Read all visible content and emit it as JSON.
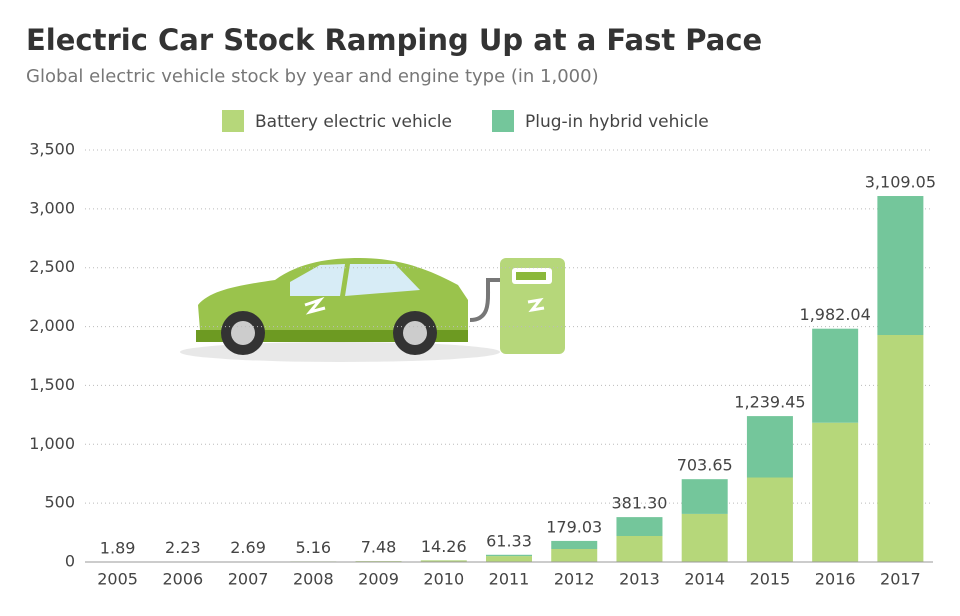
{
  "chart_data": {
    "type": "stacked-bar",
    "title": "Electric Car Stock Ramping Up at a Fast Pace",
    "subtitle": "Global electric vehicle stock by year and engine type (in 1,000)",
    "categories": [
      "2005",
      "2006",
      "2007",
      "2008",
      "2009",
      "2010",
      "2011",
      "2012",
      "2013",
      "2014",
      "2015",
      "2016",
      "2017"
    ],
    "series": [
      {
        "name": "Battery electric vehicle",
        "color": "#b6d77a",
        "values": [
          1.89,
          2.23,
          2.69,
          5.16,
          7.48,
          13.86,
          50.2,
          110.33,
          220.86,
          408.45,
          717.79,
          1183.23,
          1928.36
        ]
      },
      {
        "name": "Plug-in hybrid vehicle",
        "color": "#74c69b",
        "values": [
          0,
          0,
          0,
          0,
          0,
          0.4,
          11.13,
          68.7,
          160.44,
          295.2,
          521.66,
          798.81,
          1180.69
        ]
      }
    ],
    "totals": [
      1.89,
      2.23,
      2.69,
      5.16,
      7.48,
      14.26,
      61.33,
      179.03,
      381.3,
      703.65,
      1239.45,
      1982.04,
      3109.05
    ],
    "total_labels": [
      "1.89",
      "2.23",
      "2.69",
      "5.16",
      "7.48",
      "14.26",
      "61.33",
      "179.03",
      "381.30",
      "703.65",
      "1,239.45",
      "1,982.04",
      "3,109.05"
    ],
    "ylim": [
      0,
      3500
    ],
    "yticks": [
      0,
      500,
      {
        "value": 1000,
        "label": "1,000"
      },
      {
        "value": 1500,
        "label": "1,500"
      },
      {
        "value": 2000,
        "label": "2,000"
      },
      {
        "value": 2500,
        "label": "2,500"
      },
      {
        "value": 3000,
        "label": "3,000"
      },
      {
        "value": 3500,
        "label": "3,500"
      }
    ],
    "grid": true
  }
}
